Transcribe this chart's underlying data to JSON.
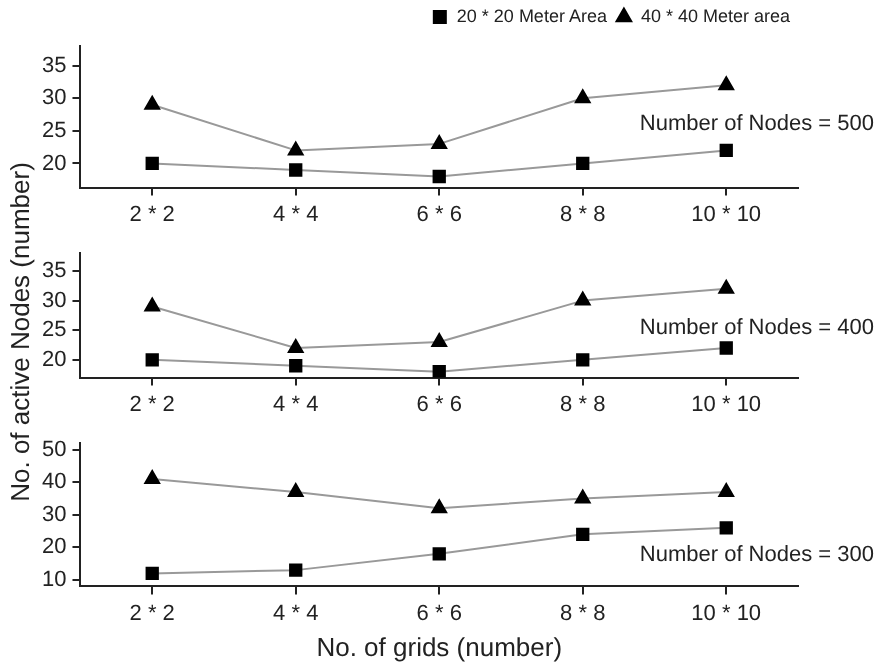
{
  "chart_data": [
    {
      "type": "line",
      "categories": [
        "2 * 2",
        "4 * 4",
        "6 * 6",
        "8 * 8",
        "10 * 10"
      ],
      "ylim": [
        16.3,
        38
      ],
      "yticks": [
        20,
        25,
        30,
        35
      ],
      "grid": false,
      "legend": "top right",
      "annotations": [
        "Number of Nodes = 500"
      ],
      "series": [
        {
          "name": "20 * 20 Meter Area",
          "color": "#000000",
          "marker": "square",
          "values": [
            20,
            19,
            18,
            20,
            22
          ]
        },
        {
          "name": "40 * 40 Meter area",
          "color": "#000000",
          "marker": "triangle",
          "values": [
            29,
            22,
            23,
            30,
            32
          ]
        }
      ]
    },
    {
      "type": "line",
      "categories": [
        "2 * 2",
        "4 * 4",
        "6 * 6",
        "8 * 8",
        "10 * 10"
      ],
      "ylim": [
        17,
        38
      ],
      "yticks": [
        20,
        25,
        30,
        35
      ],
      "grid": false,
      "ylabel": "No. of active Nodes (number)",
      "annotations": [
        "Number of Nodes = 400"
      ],
      "series": [
        {
          "color": "#000000",
          "marker": "square",
          "values": [
            20,
            19,
            18,
            20,
            22
          ]
        },
        {
          "color": "#000000",
          "marker": "triangle",
          "values": [
            29,
            22,
            23,
            30,
            32
          ]
        }
      ]
    },
    {
      "type": "line",
      "categories": [
        "2 * 2",
        "4 * 4",
        "6 * 6",
        "8 * 8",
        "10 * 10"
      ],
      "ylim": [
        8,
        52
      ],
      "yticks": [
        10,
        20,
        30,
        40,
        50
      ],
      "grid": false,
      "xlabel": "No. of grids (number)",
      "annotations": [
        "Number of Nodes = 300"
      ],
      "series": [
        {
          "color": "#000000",
          "marker": "square",
          "values": [
            12,
            13,
            18,
            24,
            26
          ]
        },
        {
          "color": "#000000",
          "marker": "triangle",
          "values": [
            41,
            37,
            32,
            35,
            37
          ]
        }
      ]
    }
  ]
}
